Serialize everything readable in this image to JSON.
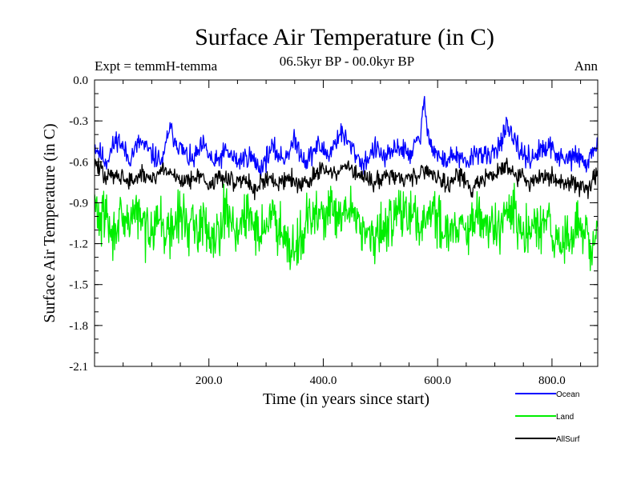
{
  "chart_data": {
    "type": "line",
    "title": "Surface Air Temperature (in C)",
    "subtitle": "06.5kyr BP - 00.0kyr BP",
    "experiment": "Expt = temmH-temma",
    "season": "Ann",
    "xlabel": "Time (in years since start)",
    "ylabel": "Surface Air Temperature (in C)",
    "xlim": [
      0,
      880
    ],
    "ylim": [
      -2.1,
      0.0
    ],
    "x_ticks": [
      200,
      400,
      600,
      800
    ],
    "x_tick_labels": [
      "200.0",
      "400.0",
      "600.0",
      "800.0"
    ],
    "y_ticks": [
      0.0,
      -0.3,
      -0.6,
      -0.9,
      -1.2,
      -1.5,
      -1.8,
      -2.1
    ],
    "y_tick_labels": [
      "0.0",
      "-0.3",
      "-0.6",
      "-0.9",
      "-1.2",
      "-1.5",
      "-1.8",
      "-2.1"
    ],
    "legend_position": "bottom-right, outside plot",
    "series": [
      {
        "name": "Ocean",
        "color": "#0000ff",
        "key": [
          [
            0,
            -0.48
          ],
          [
            20,
            -0.6
          ],
          [
            40,
            -0.42
          ],
          [
            60,
            -0.58
          ],
          [
            80,
            -0.45
          ],
          [
            100,
            -0.55
          ],
          [
            120,
            -0.6
          ],
          [
            130,
            -0.35
          ],
          [
            150,
            -0.5
          ],
          [
            170,
            -0.6
          ],
          [
            190,
            -0.48
          ],
          [
            210,
            -0.62
          ],
          [
            230,
            -0.52
          ],
          [
            250,
            -0.6
          ],
          [
            270,
            -0.55
          ],
          [
            290,
            -0.65
          ],
          [
            310,
            -0.5
          ],
          [
            330,
            -0.58
          ],
          [
            350,
            -0.45
          ],
          [
            370,
            -0.6
          ],
          [
            390,
            -0.48
          ],
          [
            410,
            -0.55
          ],
          [
            430,
            -0.38
          ],
          [
            450,
            -0.5
          ],
          [
            470,
            -0.62
          ],
          [
            490,
            -0.5
          ],
          [
            510,
            -0.58
          ],
          [
            530,
            -0.48
          ],
          [
            550,
            -0.55
          ],
          [
            570,
            -0.42
          ],
          [
            575,
            -0.17
          ],
          [
            590,
            -0.5
          ],
          [
            610,
            -0.6
          ],
          [
            630,
            -0.55
          ],
          [
            650,
            -0.62
          ],
          [
            670,
            -0.52
          ],
          [
            690,
            -0.58
          ],
          [
            710,
            -0.45
          ],
          [
            720,
            -0.35
          ],
          [
            740,
            -0.5
          ],
          [
            760,
            -0.58
          ],
          [
            780,
            -0.52
          ],
          [
            800,
            -0.5
          ],
          [
            820,
            -0.6
          ],
          [
            840,
            -0.55
          ],
          [
            860,
            -0.62
          ],
          [
            880,
            -0.45
          ]
        ],
        "amplitude": 0.12
      },
      {
        "name": "Land",
        "color": "#00ee00",
        "key": [
          [
            0,
            -0.9
          ],
          [
            10,
            -1.05
          ],
          [
            20,
            -0.95
          ],
          [
            30,
            -1.2
          ],
          [
            40,
            -1.0
          ],
          [
            50,
            -1.1
          ],
          [
            70,
            -0.95
          ],
          [
            90,
            -1.1
          ],
          [
            110,
            -1.0
          ],
          [
            130,
            -1.15
          ],
          [
            150,
            -0.98
          ],
          [
            170,
            -1.1
          ],
          [
            190,
            -1.05
          ],
          [
            210,
            -1.15
          ],
          [
            230,
            -0.95
          ],
          [
            250,
            -1.1
          ],
          [
            270,
            -1.0
          ],
          [
            290,
            -1.12
          ],
          [
            310,
            -1.0
          ],
          [
            330,
            -1.1
          ],
          [
            350,
            -1.25
          ],
          [
            370,
            -1.05
          ],
          [
            390,
            -1.0
          ],
          [
            410,
            -0.95
          ],
          [
            430,
            -1.05
          ],
          [
            450,
            -0.92
          ],
          [
            470,
            -1.1
          ],
          [
            490,
            -1.2
          ],
          [
            510,
            -1.05
          ],
          [
            530,
            -0.95
          ],
          [
            550,
            -1.0
          ],
          [
            570,
            -1.05
          ],
          [
            590,
            -0.95
          ],
          [
            610,
            -1.1
          ],
          [
            630,
            -1.05
          ],
          [
            650,
            -1.15
          ],
          [
            670,
            -1.0
          ],
          [
            690,
            -1.1
          ],
          [
            710,
            -1.05
          ],
          [
            730,
            -0.95
          ],
          [
            750,
            -1.15
          ],
          [
            770,
            -1.1
          ],
          [
            790,
            -1.05
          ],
          [
            810,
            -1.2
          ],
          [
            830,
            -1.15
          ],
          [
            850,
            -1.05
          ],
          [
            870,
            -1.3
          ],
          [
            880,
            -1.0
          ]
        ],
        "amplitude": 0.28
      },
      {
        "name": "AllSurf",
        "color": "#000000",
        "key": [
          [
            0,
            -0.6
          ],
          [
            20,
            -0.72
          ],
          [
            40,
            -0.68
          ],
          [
            60,
            -0.75
          ],
          [
            80,
            -0.7
          ],
          [
            100,
            -0.72
          ],
          [
            120,
            -0.65
          ],
          [
            140,
            -0.7
          ],
          [
            160,
            -0.75
          ],
          [
            180,
            -0.68
          ],
          [
            200,
            -0.78
          ],
          [
            220,
            -0.7
          ],
          [
            240,
            -0.75
          ],
          [
            260,
            -0.72
          ],
          [
            280,
            -0.8
          ],
          [
            300,
            -0.72
          ],
          [
            320,
            -0.76
          ],
          [
            340,
            -0.7
          ],
          [
            360,
            -0.78
          ],
          [
            380,
            -0.72
          ],
          [
            400,
            -0.65
          ],
          [
            420,
            -0.7
          ],
          [
            440,
            -0.62
          ],
          [
            460,
            -0.7
          ],
          [
            480,
            -0.75
          ],
          [
            500,
            -0.72
          ],
          [
            520,
            -0.68
          ],
          [
            540,
            -0.74
          ],
          [
            560,
            -0.7
          ],
          [
            580,
            -0.65
          ],
          [
            600,
            -0.72
          ],
          [
            620,
            -0.75
          ],
          [
            640,
            -0.7
          ],
          [
            660,
            -0.8
          ],
          [
            680,
            -0.72
          ],
          [
            700,
            -0.68
          ],
          [
            720,
            -0.65
          ],
          [
            740,
            -0.7
          ],
          [
            760,
            -0.75
          ],
          [
            780,
            -0.72
          ],
          [
            800,
            -0.7
          ],
          [
            820,
            -0.78
          ],
          [
            840,
            -0.74
          ],
          [
            860,
            -0.8
          ],
          [
            880,
            -0.68
          ]
        ],
        "amplitude": 0.1
      }
    ]
  }
}
